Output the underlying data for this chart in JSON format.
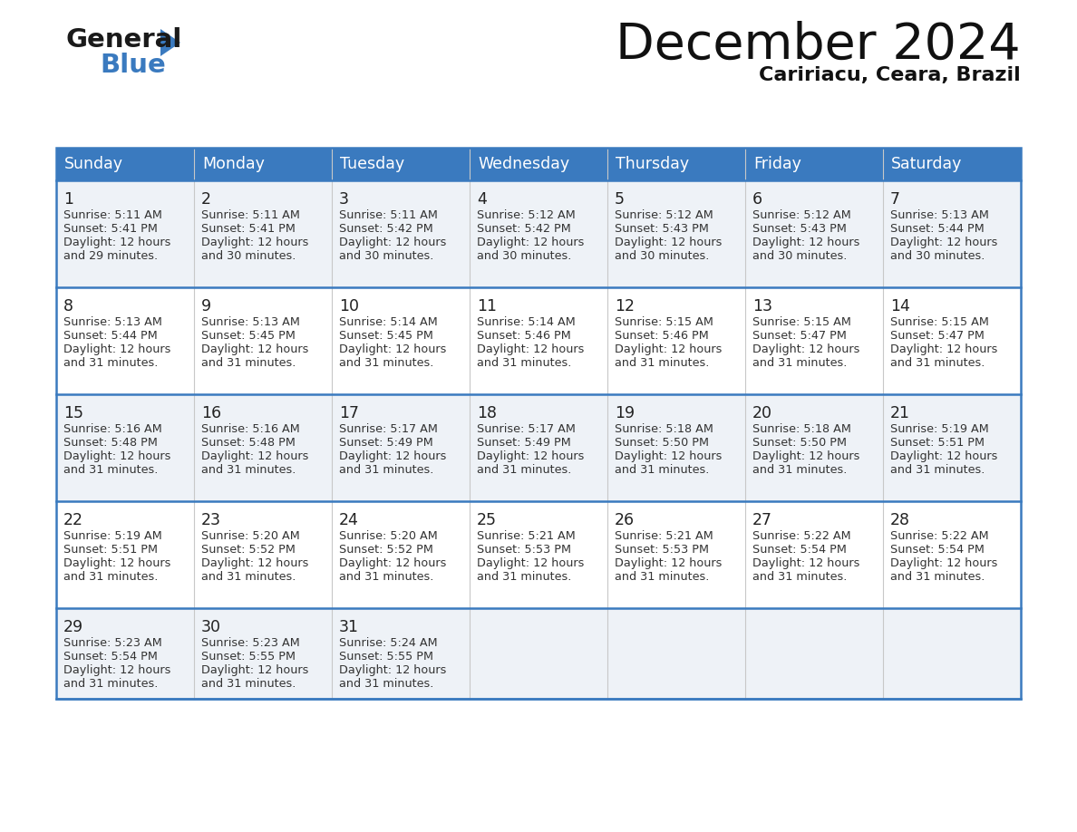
{
  "title": "December 2024",
  "subtitle": "Caririacu, Ceara, Brazil",
  "days_of_week": [
    "Sunday",
    "Monday",
    "Tuesday",
    "Wednesday",
    "Thursday",
    "Friday",
    "Saturday"
  ],
  "header_bg": "#3a7abf",
  "header_text": "#ffffff",
  "row_bg_odd": "#eef2f7",
  "row_bg_even": "#ffffff",
  "border_color": "#3a7abf",
  "text_color": "#333333",
  "calendar": [
    [
      {
        "day": 1,
        "sunrise": "5:11 AM",
        "sunset": "5:41 PM",
        "daylight": "12 hours and 29 minutes."
      },
      {
        "day": 2,
        "sunrise": "5:11 AM",
        "sunset": "5:41 PM",
        "daylight": "12 hours and 30 minutes."
      },
      {
        "day": 3,
        "sunrise": "5:11 AM",
        "sunset": "5:42 PM",
        "daylight": "12 hours and 30 minutes."
      },
      {
        "day": 4,
        "sunrise": "5:12 AM",
        "sunset": "5:42 PM",
        "daylight": "12 hours and 30 minutes."
      },
      {
        "day": 5,
        "sunrise": "5:12 AM",
        "sunset": "5:43 PM",
        "daylight": "12 hours and 30 minutes."
      },
      {
        "day": 6,
        "sunrise": "5:12 AM",
        "sunset": "5:43 PM",
        "daylight": "12 hours and 30 minutes."
      },
      {
        "day": 7,
        "sunrise": "5:13 AM",
        "sunset": "5:44 PM",
        "daylight": "12 hours and 30 minutes."
      }
    ],
    [
      {
        "day": 8,
        "sunrise": "5:13 AM",
        "sunset": "5:44 PM",
        "daylight": "12 hours and 31 minutes."
      },
      {
        "day": 9,
        "sunrise": "5:13 AM",
        "sunset": "5:45 PM",
        "daylight": "12 hours and 31 minutes."
      },
      {
        "day": 10,
        "sunrise": "5:14 AM",
        "sunset": "5:45 PM",
        "daylight": "12 hours and 31 minutes."
      },
      {
        "day": 11,
        "sunrise": "5:14 AM",
        "sunset": "5:46 PM",
        "daylight": "12 hours and 31 minutes."
      },
      {
        "day": 12,
        "sunrise": "5:15 AM",
        "sunset": "5:46 PM",
        "daylight": "12 hours and 31 minutes."
      },
      {
        "day": 13,
        "sunrise": "5:15 AM",
        "sunset": "5:47 PM",
        "daylight": "12 hours and 31 minutes."
      },
      {
        "day": 14,
        "sunrise": "5:15 AM",
        "sunset": "5:47 PM",
        "daylight": "12 hours and 31 minutes."
      }
    ],
    [
      {
        "day": 15,
        "sunrise": "5:16 AM",
        "sunset": "5:48 PM",
        "daylight": "12 hours and 31 minutes."
      },
      {
        "day": 16,
        "sunrise": "5:16 AM",
        "sunset": "5:48 PM",
        "daylight": "12 hours and 31 minutes."
      },
      {
        "day": 17,
        "sunrise": "5:17 AM",
        "sunset": "5:49 PM",
        "daylight": "12 hours and 31 minutes."
      },
      {
        "day": 18,
        "sunrise": "5:17 AM",
        "sunset": "5:49 PM",
        "daylight": "12 hours and 31 minutes."
      },
      {
        "day": 19,
        "sunrise": "5:18 AM",
        "sunset": "5:50 PM",
        "daylight": "12 hours and 31 minutes."
      },
      {
        "day": 20,
        "sunrise": "5:18 AM",
        "sunset": "5:50 PM",
        "daylight": "12 hours and 31 minutes."
      },
      {
        "day": 21,
        "sunrise": "5:19 AM",
        "sunset": "5:51 PM",
        "daylight": "12 hours and 31 minutes."
      }
    ],
    [
      {
        "day": 22,
        "sunrise": "5:19 AM",
        "sunset": "5:51 PM",
        "daylight": "12 hours and 31 minutes."
      },
      {
        "day": 23,
        "sunrise": "5:20 AM",
        "sunset": "5:52 PM",
        "daylight": "12 hours and 31 minutes."
      },
      {
        "day": 24,
        "sunrise": "5:20 AM",
        "sunset": "5:52 PM",
        "daylight": "12 hours and 31 minutes."
      },
      {
        "day": 25,
        "sunrise": "5:21 AM",
        "sunset": "5:53 PM",
        "daylight": "12 hours and 31 minutes."
      },
      {
        "day": 26,
        "sunrise": "5:21 AM",
        "sunset": "5:53 PM",
        "daylight": "12 hours and 31 minutes."
      },
      {
        "day": 27,
        "sunrise": "5:22 AM",
        "sunset": "5:54 PM",
        "daylight": "12 hours and 31 minutes."
      },
      {
        "day": 28,
        "sunrise": "5:22 AM",
        "sunset": "5:54 PM",
        "daylight": "12 hours and 31 minutes."
      }
    ],
    [
      {
        "day": 29,
        "sunrise": "5:23 AM",
        "sunset": "5:54 PM",
        "daylight": "12 hours and 31 minutes."
      },
      {
        "day": 30,
        "sunrise": "5:23 AM",
        "sunset": "5:55 PM",
        "daylight": "12 hours and 31 minutes."
      },
      {
        "day": 31,
        "sunrise": "5:24 AM",
        "sunset": "5:55 PM",
        "daylight": "12 hours and 31 minutes."
      },
      null,
      null,
      null,
      null
    ]
  ],
  "figsize": [
    11.88,
    9.18
  ],
  "dpi": 100
}
